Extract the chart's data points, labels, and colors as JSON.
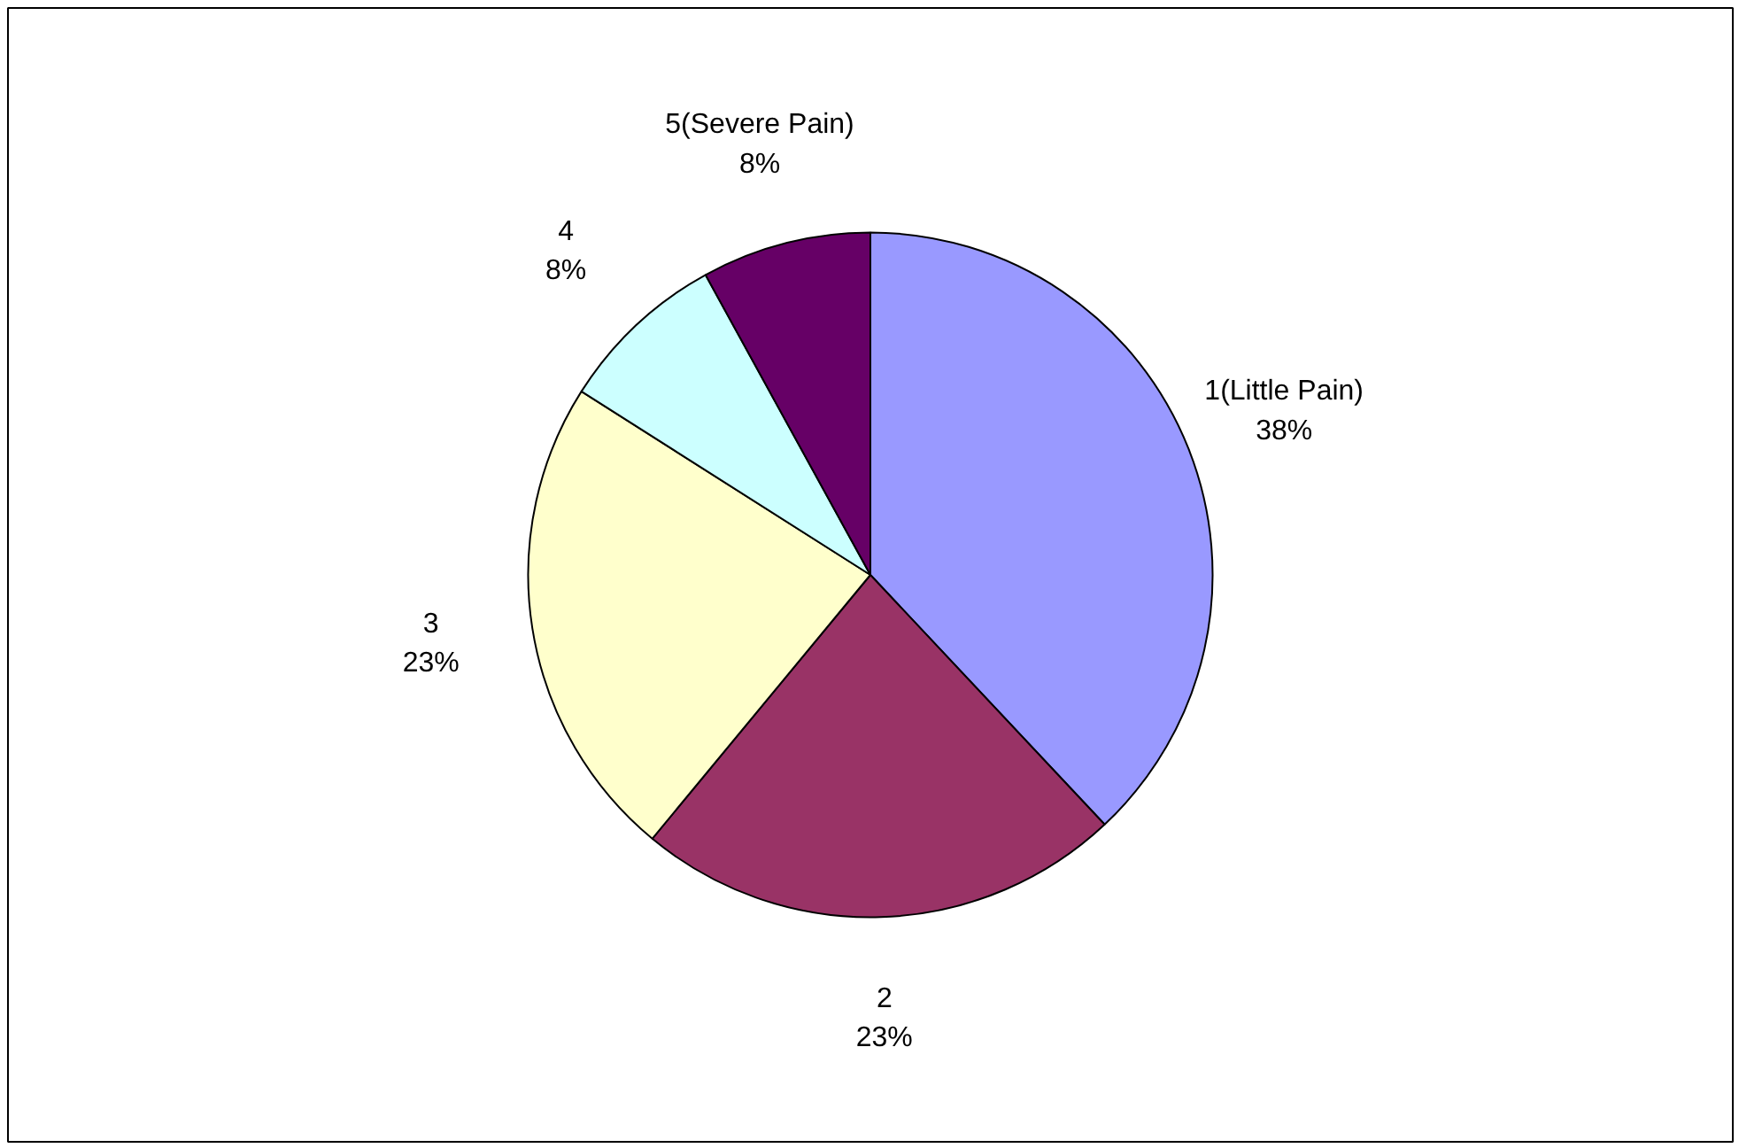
{
  "chart_data": {
    "type": "pie",
    "categories": [
      "1(Little Pain)",
      "2",
      "3",
      "4",
      "5(Severe Pain)"
    ],
    "values": [
      38,
      23,
      23,
      8,
      8
    ],
    "value_labels": [
      "38%",
      "23%",
      "23%",
      "8%",
      "8%"
    ],
    "colors": [
      "#9999ff",
      "#993366",
      "#ffffcc",
      "#ccffff",
      "#660066"
    ]
  }
}
